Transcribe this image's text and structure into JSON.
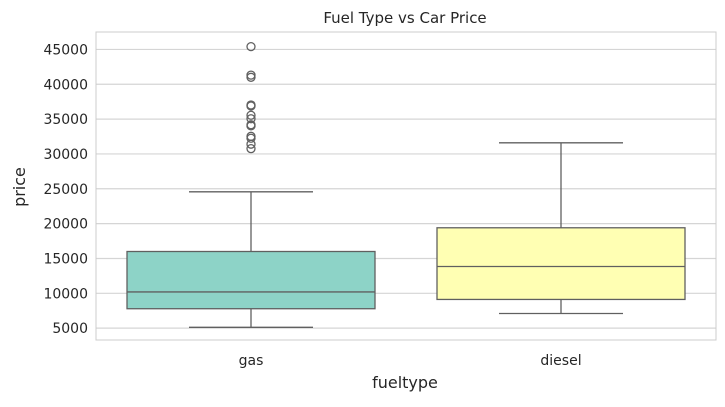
{
  "chart_data": {
    "type": "box",
    "title": "Fuel Type vs Car Price",
    "xlabel": "fueltype",
    "ylabel": "price",
    "ylim": [
      3300,
      47500
    ],
    "yticks": [
      5000,
      10000,
      15000,
      20000,
      25000,
      30000,
      35000,
      40000,
      45000
    ],
    "grid": "horizontal",
    "categories": [
      "gas",
      "diesel"
    ],
    "boxes": [
      {
        "category": "gas",
        "whisker_low": 5118,
        "q1": 7788,
        "median": 10198,
        "q3": 16000,
        "whisker_high": 24565,
        "outliers": [
          45400,
          41315,
          41000,
          37028,
          36880,
          35550,
          35056,
          34184,
          34028,
          32528,
          32250,
          31400,
          30760
        ],
        "color": "#8dd3c7"
      },
      {
        "category": "diesel",
        "whisker_low": 7099,
        "q1": 9120,
        "median": 13852,
        "q3": 19405,
        "whisker_high": 31600,
        "outliers": [],
        "color": "#ffffb3"
      }
    ],
    "line_color": "#606060",
    "grid_color": "#d5d5d5"
  }
}
